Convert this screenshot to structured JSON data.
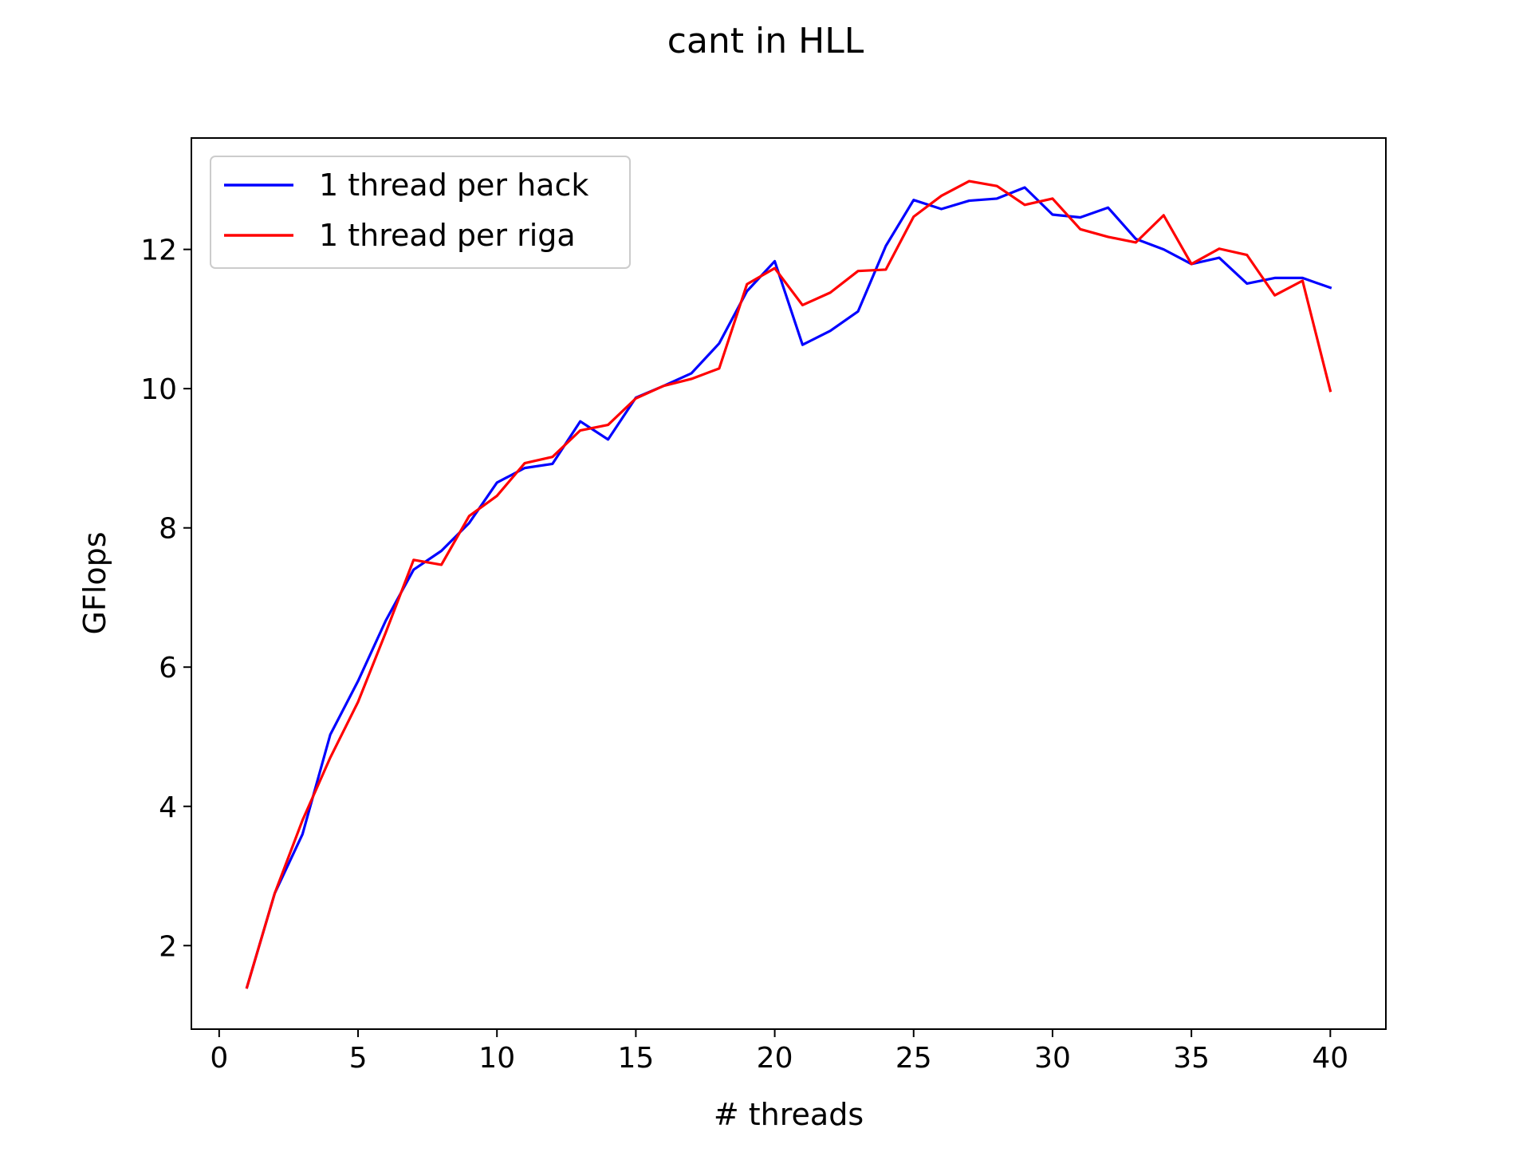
{
  "chart_data": {
    "type": "line",
    "title": "cant in HLL",
    "xlabel": "# threads",
    "ylabel": "GFlops",
    "xlim": [
      -1,
      42
    ],
    "ylim": [
      0.8,
      13.6
    ],
    "xticks": [
      0,
      5,
      10,
      15,
      20,
      25,
      30,
      35,
      40
    ],
    "yticks": [
      2,
      4,
      6,
      8,
      10,
      12
    ],
    "grid": false,
    "legend_position": "upper-left",
    "x": [
      1,
      2,
      3,
      4,
      5,
      6,
      7,
      8,
      9,
      10,
      11,
      12,
      13,
      14,
      15,
      16,
      17,
      18,
      19,
      20,
      21,
      22,
      23,
      24,
      25,
      26,
      27,
      28,
      29,
      30,
      31,
      32,
      33,
      34,
      35,
      36,
      37,
      38,
      39,
      40
    ],
    "series": [
      {
        "name": "1 thread per hack",
        "color": "#0000ff",
        "values": [
          1.4,
          2.75,
          3.6,
          5.03,
          5.8,
          6.67,
          7.4,
          7.67,
          8.07,
          8.65,
          8.86,
          8.92,
          9.53,
          9.27,
          9.87,
          10.04,
          10.22,
          10.65,
          11.4,
          11.83,
          10.63,
          10.83,
          11.11,
          12.05,
          12.71,
          12.58,
          12.7,
          12.73,
          12.89,
          12.5,
          12.46,
          12.6,
          12.15,
          12.0,
          11.79,
          11.88,
          11.51,
          11.59,
          11.59,
          11.45
        ]
      },
      {
        "name": "1 thread per riga",
        "color": "#ff0000",
        "values": [
          1.4,
          2.75,
          3.8,
          4.7,
          5.5,
          6.5,
          7.54,
          7.47,
          8.17,
          8.46,
          8.93,
          9.02,
          9.4,
          9.48,
          9.86,
          10.04,
          10.14,
          10.29,
          11.5,
          11.73,
          11.2,
          11.38,
          11.69,
          11.71,
          12.47,
          12.77,
          12.98,
          12.91,
          12.64,
          12.73,
          12.29,
          12.18,
          12.1,
          12.49,
          11.79,
          12.01,
          11.92,
          11.34,
          11.55,
          9.97
        ]
      }
    ]
  }
}
